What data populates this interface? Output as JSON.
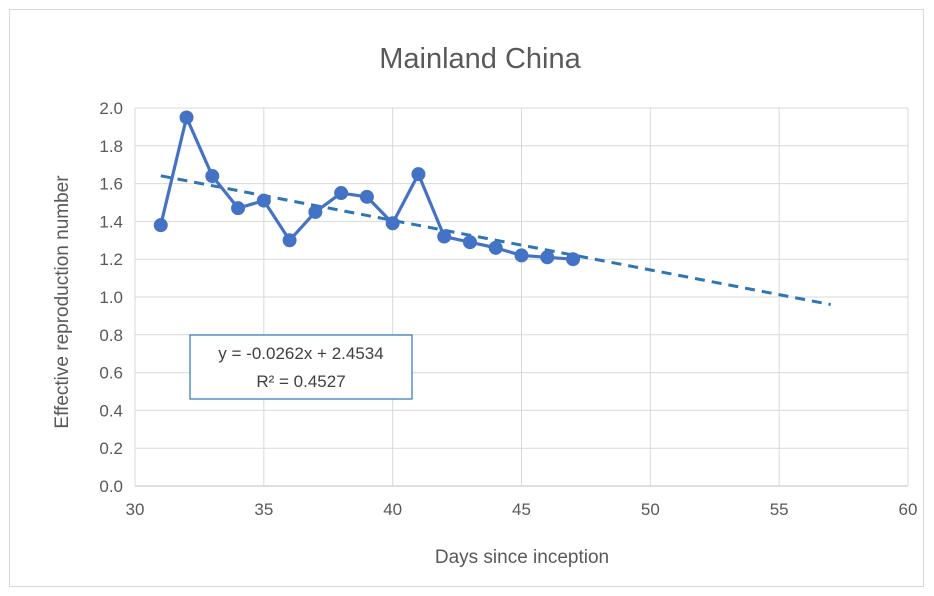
{
  "chart_data": {
    "type": "scatter",
    "title": "Mainland China",
    "xlabel": "Days since inception",
    "ylabel": "Effective reproduction number",
    "xlim": [
      30,
      60
    ],
    "ylim": [
      0.0,
      2.0
    ],
    "x_ticks": [
      "30",
      "35",
      "40",
      "45",
      "50",
      "55",
      "60"
    ],
    "y_ticks": [
      "0.0",
      "0.2",
      "0.4",
      "0.6",
      "0.8",
      "1.0",
      "1.2",
      "1.4",
      "1.6",
      "1.8",
      "2.0"
    ],
    "grid": true,
    "series": [
      {
        "x": [
          31,
          32,
          33,
          34,
          35,
          36,
          37,
          38,
          39,
          40,
          41,
          42,
          43,
          44,
          45,
          46,
          47
        ],
        "y": [
          1.38,
          1.95,
          1.64,
          1.47,
          1.51,
          1.3,
          1.45,
          1.55,
          1.53,
          1.39,
          1.65,
          1.32,
          1.29,
          1.26,
          1.22,
          1.21,
          1.2
        ],
        "color": "#4472c4",
        "markers": true,
        "line": true
      }
    ],
    "trendline": {
      "type": "linear",
      "slope": -0.0262,
      "intercept": 2.4534,
      "x_range": [
        31,
        57
      ],
      "color": "#2e75b6",
      "style": "dashed",
      "equation_text": "y = -0.0262x + 2.4534",
      "r2_text": "R² = 0.4527"
    }
  }
}
